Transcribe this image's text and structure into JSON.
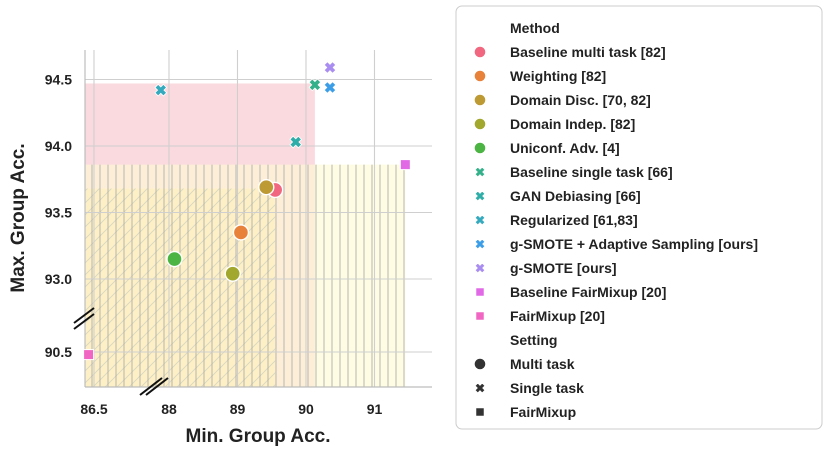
{
  "chart_data": {
    "type": "scatter",
    "xlabel": "Min. Group Acc.",
    "ylabel": "Max. Group Acc.",
    "x_axis": {
      "broken": true,
      "ticks": [
        86.5,
        88,
        89,
        90,
        91
      ],
      "tick_labels": [
        "86.5",
        "88",
        "89",
        "90",
        "91"
      ],
      "range": [
        86.3,
        91.8
      ]
    },
    "y_axis": {
      "broken": true,
      "ticks": [
        90.5,
        93.0,
        93.5,
        94.0,
        94.5
      ],
      "tick_labels": [
        "90.5",
        "93.0",
        "93.5",
        "94.0",
        "94.5"
      ],
      "range": [
        90.25,
        94.7
      ]
    },
    "grid": true,
    "shaded_regions": [
      {
        "x": [
          86.3,
          90.13
        ],
        "y": [
          90.25,
          94.47
        ],
        "color": "#f8c3cc",
        "hatch": "none"
      },
      {
        "x": [
          86.3,
          89.55
        ],
        "y": [
          90.25,
          93.68
        ],
        "color": "#fbd89a",
        "hatch": "diagonal"
      },
      {
        "x": [
          86.3,
          91.45
        ],
        "y": [
          90.25,
          93.86
        ],
        "color": "#fdfbd2",
        "hatch": "vertical"
      }
    ],
    "points": [
      {
        "method": "Baseline multi task [82]",
        "setting": "Multi task",
        "x": 89.55,
        "y": 93.67
      },
      {
        "method": "Weighting [82]",
        "setting": "Multi task",
        "x": 89.05,
        "y": 93.35
      },
      {
        "method": "Domain Disc. [70, 82]",
        "setting": "Multi task",
        "x": 89.42,
        "y": 93.69
      },
      {
        "method": "Domain Indep. [82]",
        "setting": "Multi task",
        "x": 88.93,
        "y": 93.04
      },
      {
        "method": "Uniconf. Adv. [4]",
        "setting": "Multi task",
        "x": 88.08,
        "y": 93.15
      },
      {
        "method": "Baseline single task [66]",
        "setting": "Single task",
        "x": 90.13,
        "y": 94.46
      },
      {
        "method": "GAN Debiasing [66]",
        "setting": "Single task",
        "x": 89.85,
        "y": 94.03
      },
      {
        "method": "Regularized [61,83]",
        "setting": "Single task",
        "x": 87.88,
        "y": 94.42
      },
      {
        "method": "g-SMOTE + Adaptive Sampling [ours]",
        "setting": "Single task",
        "x": 90.35,
        "y": 94.44
      },
      {
        "method": "g-SMOTE [ours]",
        "setting": "Single task",
        "x": 90.35,
        "y": 94.59
      },
      {
        "method": "Baseline FairMixup [20]",
        "setting": "FairMixup",
        "x": 91.45,
        "y": 93.86
      },
      {
        "method": "FairMixup [20]",
        "setting": "FairMixup",
        "x": 86.4,
        "y": 90.4
      }
    ],
    "legend": {
      "placement": "outside-right",
      "method_title": "Method",
      "methods": [
        {
          "label": "Baseline multi task [82]",
          "color": "#f0677f"
        },
        {
          "label": "Weighting [82]",
          "color": "#e8823a"
        },
        {
          "label": "Domain Disc. [70, 82]",
          "color": "#be9a35"
        },
        {
          "label": "Domain Indep. [82]",
          "color": "#a2a72e"
        },
        {
          "label": "Uniconf. Adv. [4]",
          "color": "#4cb442"
        },
        {
          "label": "Baseline single task [66]",
          "color": "#34b18a"
        },
        {
          "label": "GAN Debiasing [66]",
          "color": "#2fada8"
        },
        {
          "label": "Regularized [61,83]",
          "color": "#35aabf"
        },
        {
          "label": "g-SMOTE + Adaptive Sampling [ours]",
          "color": "#3d9ee8"
        },
        {
          "label": "g-SMOTE [ours]",
          "color": "#a98df0"
        },
        {
          "label": "Baseline FairMixup [20]",
          "color": "#e169e6"
        },
        {
          "label": "FairMixup [20]",
          "color": "#f066c2"
        }
      ],
      "setting_title": "Setting",
      "settings": [
        {
          "label": "Multi task",
          "marker": "circle"
        },
        {
          "label": "Single task",
          "marker": "x"
        },
        {
          "label": "FairMixup",
          "marker": "square"
        }
      ]
    }
  }
}
